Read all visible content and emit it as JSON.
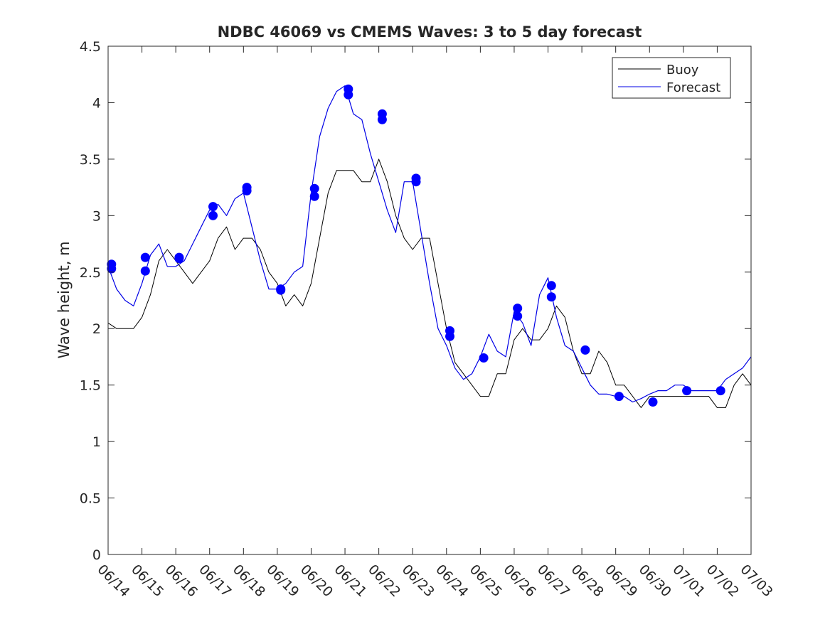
{
  "chart_data": {
    "type": "line",
    "title": "NDBC 46069 vs CMEMS Waves: 3 to 5 day forecast",
    "xlabel": "",
    "ylabel": "Wave height, m",
    "ylim": [
      0,
      4.5
    ],
    "xlim": [
      0,
      19
    ],
    "y_ticks": [
      "0",
      "0.5",
      "1",
      "1.5",
      "2",
      "2.5",
      "3",
      "3.5",
      "4",
      "4.5"
    ],
    "x_tick_labels": [
      "06/14",
      "06/15",
      "06/16",
      "06/17",
      "06/18",
      "06/19",
      "06/20",
      "06/21",
      "06/22",
      "06/23",
      "06/24",
      "06/25",
      "06/26",
      "06/27",
      "06/28",
      "06/29",
      "06/30",
      "07/01",
      "07/02",
      "07/03"
    ],
    "grid": false,
    "legend_position": "top-right",
    "colors": {
      "buoy": "#000000",
      "forecast": "#0000e6",
      "markers": "#0000ff"
    },
    "series": [
      {
        "name": "Buoy",
        "role": "observation",
        "x": [
          0.0,
          0.25,
          0.5,
          0.75,
          1.0,
          1.25,
          1.5,
          1.75,
          2.0,
          2.25,
          2.5,
          2.75,
          3.0,
          3.25,
          3.5,
          3.75,
          4.0,
          4.25,
          4.5,
          4.75,
          5.0,
          5.25,
          5.5,
          5.75,
          6.0,
          6.25,
          6.5,
          6.75,
          7.0,
          7.25,
          7.5,
          7.75,
          8.0,
          8.25,
          8.5,
          8.75,
          9.0,
          9.25,
          9.5,
          9.75,
          10.0,
          10.25,
          10.5,
          10.75,
          11.0,
          11.25,
          11.5,
          11.75,
          12.0,
          12.25,
          12.5,
          12.75,
          13.0,
          13.25,
          13.5,
          13.75,
          14.0,
          14.25,
          14.5,
          14.75,
          15.0,
          15.25,
          15.5,
          15.75,
          16.0,
          16.25,
          16.5,
          16.75,
          17.0,
          17.25,
          17.5,
          17.75,
          18.0,
          18.25,
          18.5,
          18.75,
          19.0
        ],
        "y": [
          2.05,
          2.0,
          2.0,
          2.0,
          2.1,
          2.3,
          2.6,
          2.7,
          2.6,
          2.5,
          2.4,
          2.5,
          2.6,
          2.8,
          2.9,
          2.7,
          2.8,
          2.8,
          2.7,
          2.5,
          2.4,
          2.2,
          2.3,
          2.2,
          2.4,
          2.8,
          3.2,
          3.4,
          3.4,
          3.4,
          3.3,
          3.3,
          3.5,
          3.3,
          3.0,
          2.8,
          2.7,
          2.8,
          2.8,
          2.4,
          2.0,
          1.7,
          1.6,
          1.5,
          1.4,
          1.4,
          1.6,
          1.6,
          1.9,
          2.0,
          1.9,
          1.9,
          2.0,
          2.2,
          2.1,
          1.8,
          1.6,
          1.6,
          1.8,
          1.7,
          1.5,
          1.5,
          1.4,
          1.3,
          1.4,
          1.4,
          1.4,
          1.4,
          1.4,
          1.4,
          1.4,
          1.4,
          1.3,
          1.3,
          1.5,
          1.6,
          1.5
        ]
      },
      {
        "name": "Forecast",
        "role": "forecast",
        "x": [
          0.0,
          0.25,
          0.5,
          0.75,
          1.0,
          1.25,
          1.5,
          1.75,
          2.0,
          2.25,
          2.5,
          2.75,
          3.0,
          3.25,
          3.5,
          3.75,
          4.0,
          4.25,
          4.5,
          4.75,
          5.0,
          5.25,
          5.5,
          5.75,
          6.0,
          6.25,
          6.5,
          6.75,
          7.0,
          7.25,
          7.5,
          7.75,
          8.0,
          8.25,
          8.5,
          8.75,
          9.0,
          9.25,
          9.5,
          9.75,
          10.0,
          10.25,
          10.5,
          10.75,
          11.0,
          11.25,
          11.5,
          11.75,
          12.0,
          12.25,
          12.5,
          12.75,
          13.0,
          13.25,
          13.5,
          13.75,
          14.0,
          14.25,
          14.5,
          14.75,
          15.0,
          15.25,
          15.5,
          15.75,
          16.0,
          16.25,
          16.5,
          16.75,
          17.0,
          17.25,
          17.5,
          17.75,
          18.0,
          18.25,
          18.5,
          18.75,
          19.0
        ],
        "y": [
          2.55,
          2.35,
          2.25,
          2.2,
          2.4,
          2.65,
          2.75,
          2.55,
          2.55,
          2.6,
          2.75,
          2.9,
          3.05,
          3.1,
          3.0,
          3.15,
          3.2,
          2.9,
          2.6,
          2.35,
          2.35,
          2.4,
          2.5,
          2.55,
          3.2,
          3.7,
          3.95,
          4.1,
          4.15,
          3.9,
          3.85,
          3.55,
          3.3,
          3.05,
          2.85,
          3.3,
          3.3,
          2.85,
          2.4,
          2.0,
          1.85,
          1.65,
          1.55,
          1.6,
          1.75,
          1.95,
          1.8,
          1.75,
          2.15,
          2.05,
          1.85,
          2.3,
          2.45,
          2.1,
          1.85,
          1.8,
          1.65,
          1.5,
          1.42,
          1.42,
          1.4,
          1.4,
          1.35,
          1.38,
          1.42,
          1.45,
          1.45,
          1.5,
          1.5,
          1.45,
          1.45,
          1.45,
          1.45,
          1.55,
          1.6,
          1.65,
          1.75
        ]
      }
    ],
    "markers": {
      "x": [
        0.1,
        0.1,
        1.1,
        1.1,
        2.1,
        2.1,
        3.1,
        3.1,
        4.1,
        4.1,
        5.1,
        5.1,
        6.1,
        6.1,
        7.1,
        7.1,
        8.1,
        8.1,
        9.1,
        9.1,
        10.1,
        10.1,
        11.1,
        12.1,
        12.1,
        13.1,
        13.1,
        14.1,
        15.1,
        16.1,
        17.1,
        18.1
      ],
      "y": [
        2.53,
        2.57,
        2.51,
        2.63,
        2.62,
        2.63,
        3.0,
        3.08,
        3.22,
        3.25,
        2.34,
        2.35,
        3.17,
        3.24,
        4.07,
        4.12,
        3.85,
        3.9,
        3.3,
        3.33,
        1.93,
        1.98,
        1.74,
        2.11,
        2.18,
        2.28,
        2.38,
        1.81,
        1.4,
        1.35,
        1.45,
        1.45
      ]
    }
  }
}
